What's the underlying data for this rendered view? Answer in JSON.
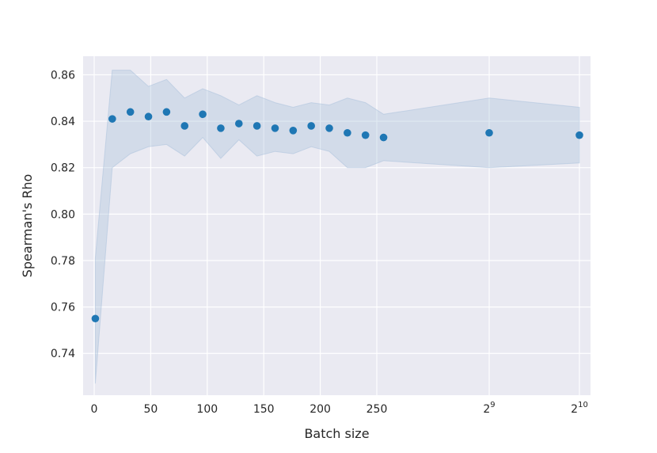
{
  "chart_data": {
    "type": "scatter",
    "title": "",
    "xlabel": "Batch size",
    "ylabel": "Spearman's Rho",
    "x": [
      1,
      16,
      32,
      48,
      64,
      80,
      96,
      112,
      128,
      144,
      160,
      176,
      192,
      208,
      224,
      240,
      256,
      512,
      1024
    ],
    "y": [
      0.755,
      0.841,
      0.844,
      0.842,
      0.844,
      0.838,
      0.843,
      0.837,
      0.839,
      0.838,
      0.837,
      0.836,
      0.838,
      0.837,
      0.835,
      0.834,
      0.833,
      0.835,
      0.834
    ],
    "band": {
      "x": [
        1,
        16,
        32,
        48,
        64,
        80,
        96,
        112,
        128,
        144,
        160,
        176,
        192,
        208,
        224,
        240,
        256,
        512,
        1024
      ],
      "lower": [
        0.727,
        0.82,
        0.826,
        0.829,
        0.83,
        0.825,
        0.833,
        0.824,
        0.832,
        0.825,
        0.827,
        0.826,
        0.829,
        0.827,
        0.82,
        0.82,
        0.823,
        0.82,
        0.822
      ],
      "upper": [
        0.781,
        0.862,
        0.862,
        0.855,
        0.858,
        0.85,
        0.854,
        0.851,
        0.847,
        0.851,
        0.848,
        0.846,
        0.848,
        0.847,
        0.85,
        0.848,
        0.843,
        0.85,
        0.846
      ]
    },
    "ylim": [
      0.722,
      0.868
    ],
    "grid": true,
    "x_ticks": [
      {
        "value": 0,
        "label": "0"
      },
      {
        "value": 50,
        "label": "50"
      },
      {
        "value": 100,
        "label": "100"
      },
      {
        "value": 150,
        "label": "150"
      },
      {
        "value": 200,
        "label": "200"
      },
      {
        "value": 250,
        "label": "250"
      },
      {
        "value": 512,
        "label": "2",
        "exponent": "9"
      },
      {
        "value": 1024,
        "label": "2",
        "exponent": "10"
      }
    ],
    "y_ticks": [
      0.74,
      0.76,
      0.78,
      0.8,
      0.82,
      0.84,
      0.86
    ],
    "colors": {
      "points": "#1f77b4",
      "band": "#a7c0db",
      "background": "#eaeaf2",
      "grid": "#ffffff"
    }
  }
}
